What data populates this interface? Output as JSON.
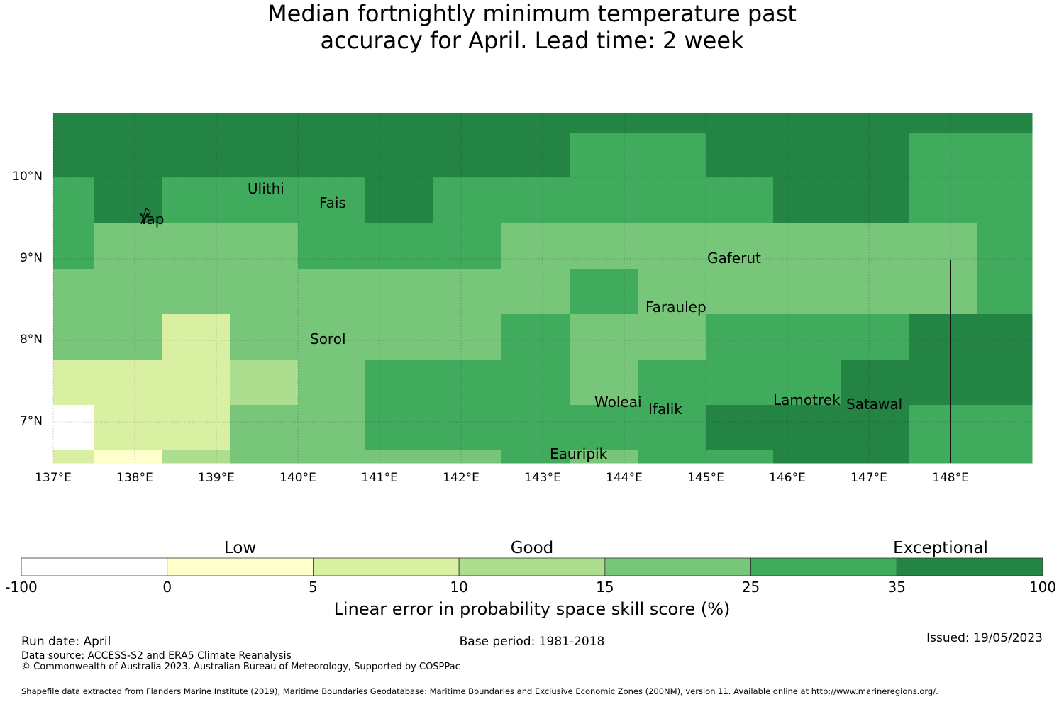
{
  "title": {
    "line1": "Median fortnightly minimum temperature past",
    "line2": "accuracy for April. Lead time: 2 week"
  },
  "map": {
    "lon_range": [
      137,
      149
    ],
    "lat_range": [
      6.5,
      10.8
    ],
    "lat_labels": [
      {
        "value": 10,
        "text": "10°N"
      },
      {
        "value": 9,
        "text": "9°N"
      },
      {
        "value": 8,
        "text": "8°N"
      },
      {
        "value": 7,
        "text": "7°N"
      }
    ],
    "lon_labels": [
      {
        "value": 137,
        "text": "137°E"
      },
      {
        "value": 138,
        "text": "138°E"
      },
      {
        "value": 139,
        "text": "139°E"
      },
      {
        "value": 140,
        "text": "140°E"
      },
      {
        "value": 141,
        "text": "141°E"
      },
      {
        "value": 142,
        "text": "142°E"
      },
      {
        "value": 143,
        "text": "143°E"
      },
      {
        "value": 144,
        "text": "144°E"
      },
      {
        "value": 145,
        "text": "145°E"
      },
      {
        "value": 146,
        "text": "146°E"
      },
      {
        "value": 147,
        "text": "147°E"
      },
      {
        "value": 148,
        "text": "148°E"
      }
    ],
    "places": [
      {
        "name": "Ulithi",
        "lon": 139.7,
        "lat": 9.9
      },
      {
        "name": "Fais",
        "lon": 140.5,
        "lat": 9.75
      },
      {
        "name": "Yap",
        "lon": 138.1,
        "lat": 9.5
      },
      {
        "name": "Gaferut",
        "lon": 145.35,
        "lat": 9.05
      },
      {
        "name": "Faraulep",
        "lon": 144.6,
        "lat": 8.45
      },
      {
        "name": "Sorol",
        "lon": 140.4,
        "lat": 8.05
      },
      {
        "name": "Woleai",
        "lon": 143.8,
        "lat": 7.3
      },
      {
        "name": "Ifalik",
        "lon": 144.5,
        "lat": 7.2
      },
      {
        "name": "Lamotrek",
        "lon": 146.25,
        "lat": 7.3
      },
      {
        "name": "Satawal",
        "lon": 147.1,
        "lat": 7.25
      },
      {
        "name": "Eauripik",
        "lon": 143.45,
        "lat": 6.65
      }
    ]
  },
  "colorbar": {
    "categories": [
      {
        "label": "Low",
        "at": 1.5
      },
      {
        "label": "Good",
        "at": 3.5
      },
      {
        "label": "Exceptional",
        "at": 6.3
      }
    ],
    "ticks": [
      "-100",
      "0",
      "5",
      "10",
      "15",
      "25",
      "35",
      "100"
    ],
    "colors": [
      "#ffffff",
      "#ffffcc",
      "#d9f0a3",
      "#addd8e",
      "#78c679",
      "#41ab5d",
      "#238443"
    ],
    "title": "Linear error in probability space skill score (%)"
  },
  "footer": {
    "run_date": "Run date: April",
    "base_period": "Base period: 1981-2018",
    "issued": "Issued: 19/05/2023",
    "data_source": "Data source: ACCESS-S2 and ERA5 Climate Reanalysis",
    "copyright": "© Commonwealth of Australia 2023, Australian Bureau of Meteorology, Supported by COSPPac",
    "shapefile": "Shapefile data extracted from Flanders Marine Institute (2019), Maritime Boundaries Geodatabase: Maritime Boundaries and Exclusive Economic Zones (200NM), version 11. Available online at http://www.marineregions.org/."
  },
  "grid_colors": {
    "Wh": "#ffffff",
    "Y0": "#ffffcc",
    "Y1": "#d9f0a3",
    "G1": "#addd8e",
    "G2": "#78c679",
    "G3": "#41ab5d",
    "G4": "#238443"
  }
}
